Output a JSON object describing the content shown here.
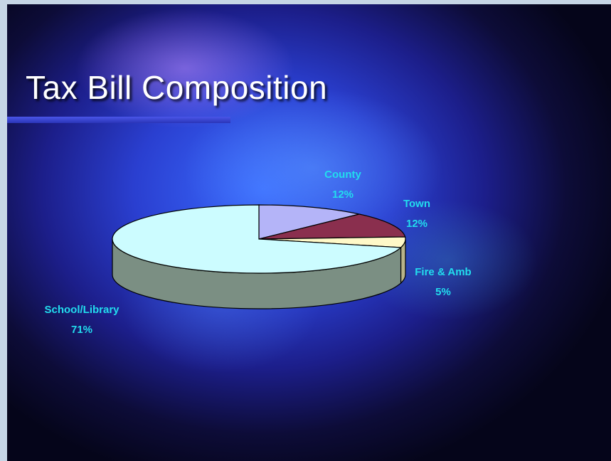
{
  "slide": {
    "title": "Tax Bill Composition"
  },
  "chart_data": {
    "type": "pie",
    "title": "Tax Bill Composition",
    "categories": [
      "County",
      "Town",
      "Fire & Amb",
      "School/Library"
    ],
    "values": [
      12,
      12,
      5,
      71
    ],
    "labels": [
      "12%",
      "12%",
      "5%",
      "71%"
    ],
    "colors": [
      "#b4b4f8",
      "#8a2f4e",
      "#fff9c8",
      "#ccfcff"
    ],
    "side_colors": [
      "#6e6ea8",
      "#4e1a2c",
      "#b8b48a",
      "#7b8f83"
    ],
    "three_d": true,
    "start_angle_deg": 0,
    "direction": "clockwise-from-top",
    "legend": "none, labels beside slices"
  }
}
